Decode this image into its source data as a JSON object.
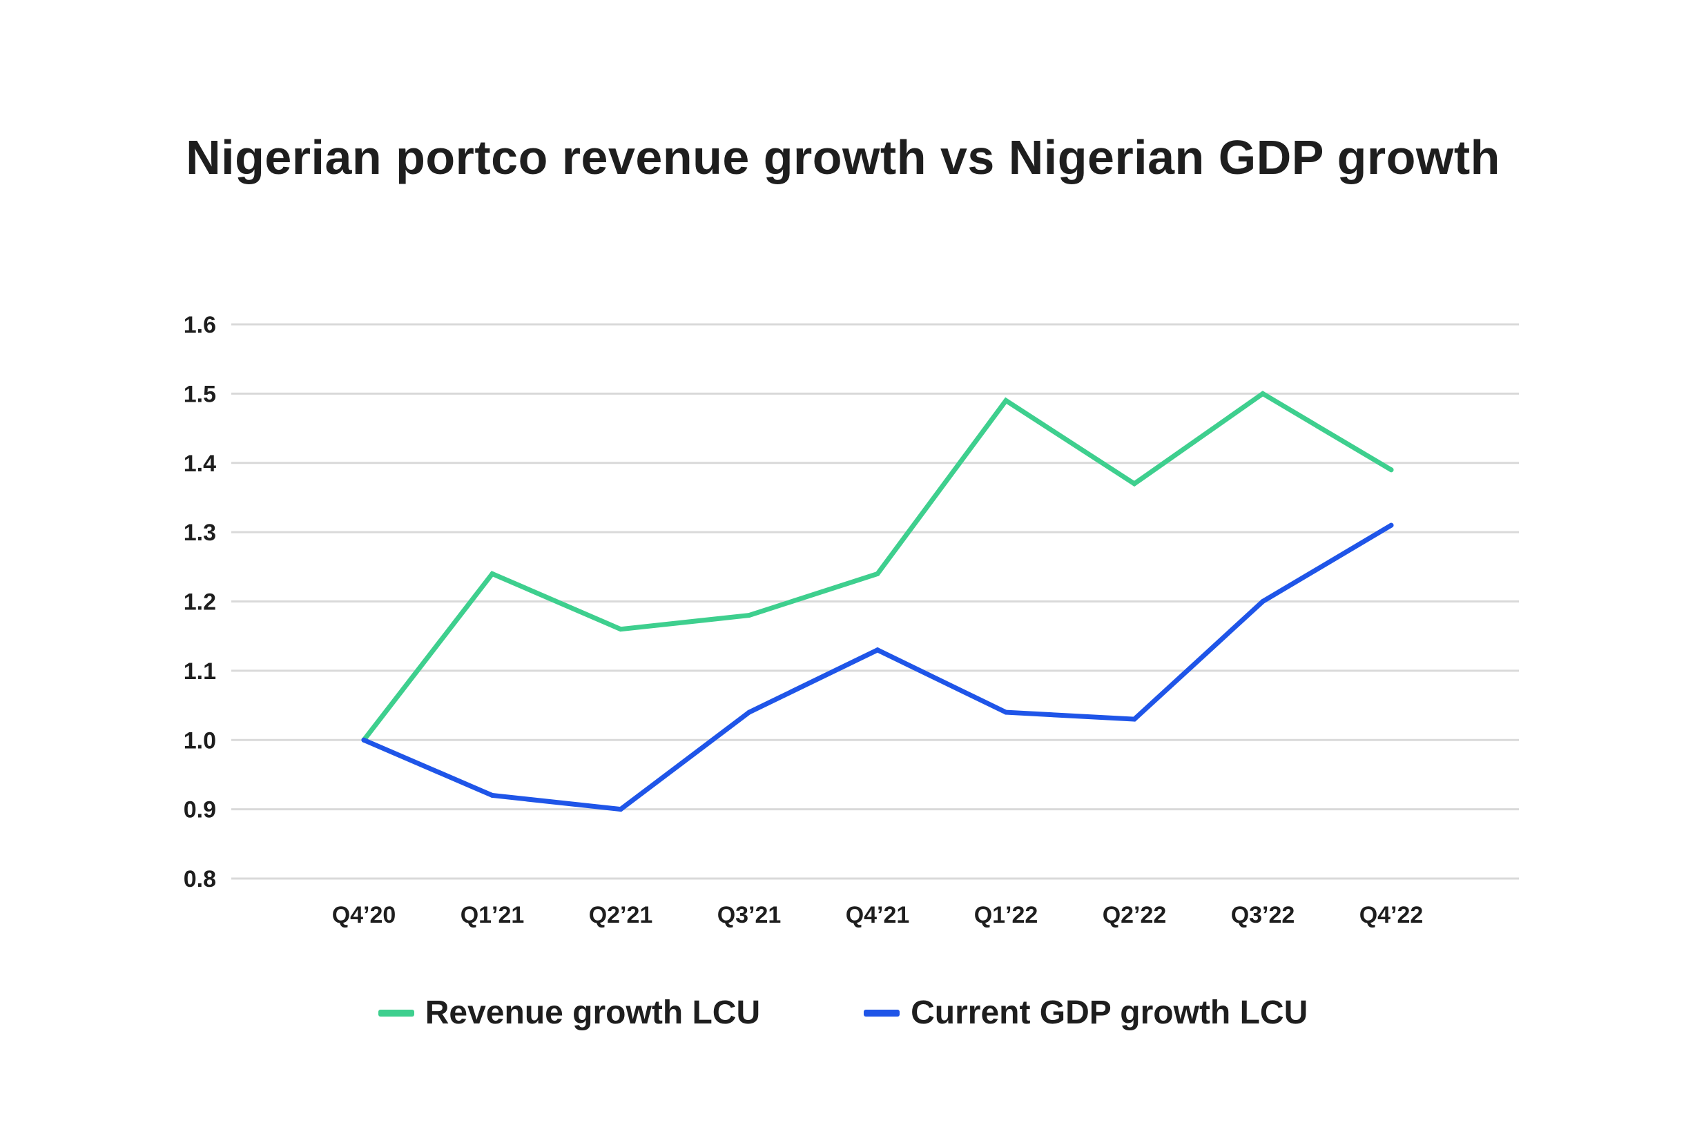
{
  "chart_data": {
    "type": "line",
    "title": "Nigerian portco revenue growth vs Nigerian GDP growth",
    "xlabel": "",
    "ylabel": "",
    "categories": [
      "Q4’20",
      "Q1’21",
      "Q2’21",
      "Q3’21",
      "Q4’21",
      "Q1’22",
      "Q2’22",
      "Q3’22",
      "Q4’22"
    ],
    "yticks": [
      "1.6",
      "1.5",
      "1.4",
      "1.3",
      "1.2",
      "1.1",
      "1.0",
      "0.9",
      "0.8"
    ],
    "ylim": [
      0.8,
      1.6
    ],
    "grid": true,
    "legend_position": "bottom",
    "series": [
      {
        "name": "Revenue growth LCU",
        "color": "#3ecf8e",
        "values": [
          1.0,
          1.24,
          1.16,
          1.18,
          1.24,
          1.49,
          1.37,
          1.5,
          1.39
        ]
      },
      {
        "name": "Current GDP growth LCU",
        "color": "#1f55e8",
        "values": [
          1.0,
          0.92,
          0.9,
          1.04,
          1.13,
          1.04,
          1.03,
          1.2,
          1.31
        ]
      }
    ]
  }
}
